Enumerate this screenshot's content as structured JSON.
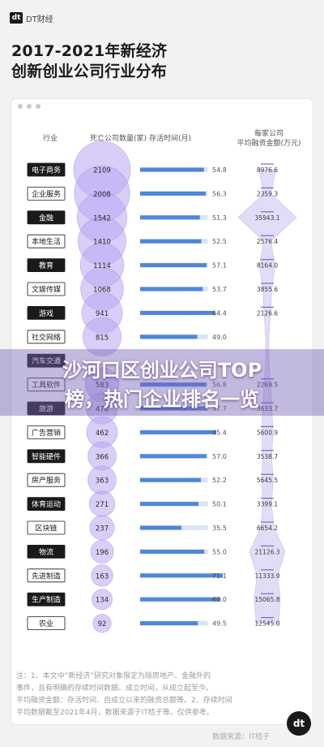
{
  "brand": {
    "mark": "dt",
    "text": "DT财经"
  },
  "title": {
    "line1": "2017-2021年新经济",
    "line2": "创新创业公司行业分布"
  },
  "overlay": {
    "line1": "沙河口区创业公司TOP",
    "line2": "榜，热门企业排名一览"
  },
  "headers": {
    "industry": "行业",
    "count": "死亡公司数量(家)",
    "lifespan": "存活时间(月)",
    "funding": "平均融资金额(万元)",
    "funding_top": "每家公司"
  },
  "footnote": [
    "注：1、本文中“新经济”研究对象限定为除房地产、金融外的",
    "事件，且有明确的存续时间数据、成立时间，从成立起至今。",
    "平均融资金额：存活时间、自成立以来的融资总额等。2、存续时间",
    "平均数据截至2021年4月，数据来源于IT桔子等。仅供参考。"
  ],
  "source_watermark": "数据来源：IT桔子",
  "corner_logo": "dt",
  "colors": {
    "bubble": "#b9a6f2",
    "bubble_stroke": "#9d86ea",
    "bar": "#4f86d9",
    "bar_bg": "#d9e4f4",
    "label_dark": "#1a1a1a",
    "diamond": "#7b63d8"
  },
  "chart_data": {
    "type": "table",
    "columns": [
      "行业",
      "死亡公司数量(家)",
      "存活时间(月)",
      "平均融资金额(万元)"
    ],
    "rows": [
      {
        "industry": "电子商务",
        "count": 2109,
        "lifespan": 54.8,
        "funding": "8976.6"
      },
      {
        "industry": "企业服务",
        "count": 2008,
        "lifespan": 56.3,
        "funding": "2359.3"
      },
      {
        "industry": "金融",
        "count": 1542,
        "lifespan": 51.3,
        "funding": "35943.1"
      },
      {
        "industry": "本地生活",
        "count": 1410,
        "lifespan": 52.5,
        "funding": "2576.4"
      },
      {
        "industry": "教育",
        "count": 1114,
        "lifespan": 57.1,
        "funding": "8164.0"
      },
      {
        "industry": "文娱传媒",
        "count": 1068,
        "lifespan": 53.7,
        "funding": "3855.6"
      },
      {
        "industry": "游戏",
        "count": 941,
        "lifespan": 64.4,
        "funding": "2126.6"
      },
      {
        "industry": "社交网络",
        "count": 815,
        "lifespan": 49.0,
        "funding": ""
      },
      {
        "industry": "汽车交通",
        "count": null,
        "lifespan": null,
        "funding": ""
      },
      {
        "industry": "工具软件",
        "count": 583,
        "lifespan": 56.8,
        "funding": "2269.5"
      },
      {
        "industry": "旅游",
        "count": 478,
        "lifespan": 57.7,
        "funding": "3633.7"
      },
      {
        "industry": "广告营销",
        "count": 462,
        "lifespan": 65.4,
        "funding": "5600.9"
      },
      {
        "industry": "智能硬件",
        "count": 366,
        "lifespan": 57.0,
        "funding": "3538.7"
      },
      {
        "industry": "房产服务",
        "count": 363,
        "lifespan": 52.2,
        "funding": "5645.5"
      },
      {
        "industry": "体育运动",
        "count": 271,
        "lifespan": 50.1,
        "funding": "3399.1"
      },
      {
        "industry": "区块链",
        "count": 237,
        "lifespan": 35.5,
        "funding": "6654.2"
      },
      {
        "industry": "物流",
        "count": 196,
        "lifespan": 55.0,
        "funding": "21126.3"
      },
      {
        "industry": "先进制造",
        "count": 163,
        "lifespan": 71.1,
        "funding": "11333.9"
      },
      {
        "industry": "生产制造",
        "count": 134,
        "lifespan": 69.0,
        "funding": "15065.8"
      },
      {
        "industry": "农业",
        "count": 92,
        "lifespan": 49.5,
        "funding": "12545.0"
      }
    ],
    "lifespan_max": 80,
    "funding_max": 36000,
    "count_max": 2109
  }
}
